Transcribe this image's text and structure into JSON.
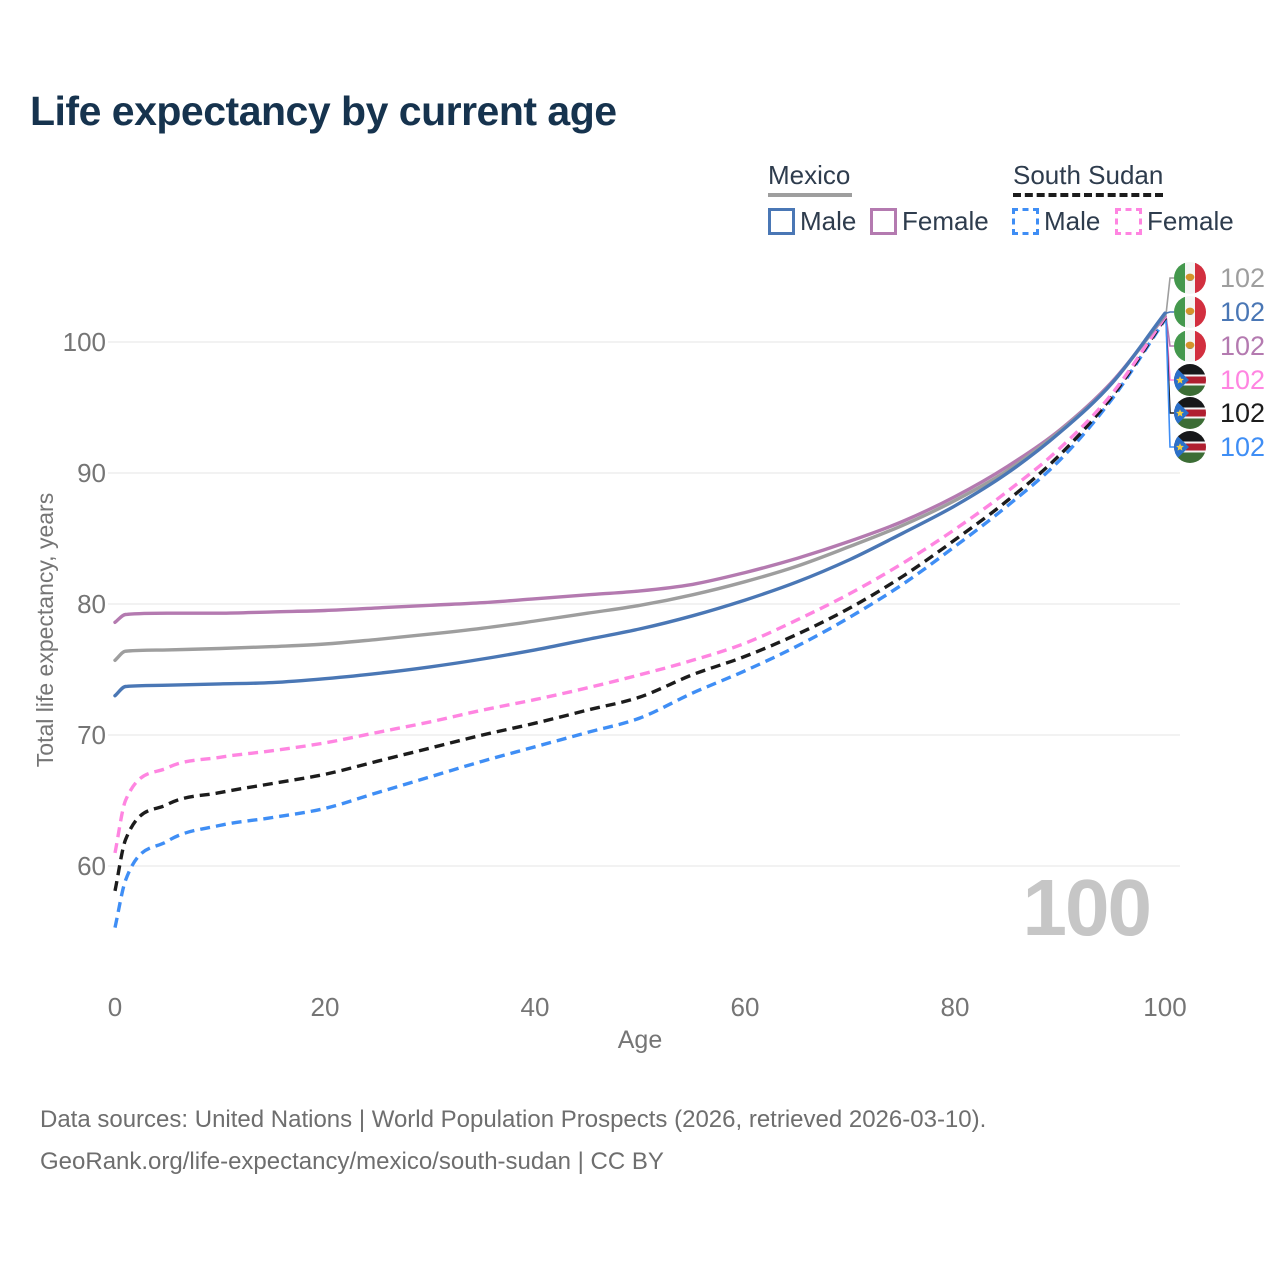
{
  "title": "Life expectancy by current age",
  "legend": {
    "groups": [
      {
        "country": "Mexico",
        "line_style": "solid",
        "underline_color": "#9e9e9e",
        "items": [
          {
            "label": "Male",
            "color": "#4a77b5",
            "dashed": false
          },
          {
            "label": "Female",
            "color": "#b47ab0",
            "dashed": false
          }
        ]
      },
      {
        "country": "South Sudan",
        "line_style": "dashed",
        "underline_color": "#1c1c1c",
        "items": [
          {
            "label": "Male",
            "color": "#3f8ef5",
            "dashed": true
          },
          {
            "label": "Female",
            "color": "#ff85e1",
            "dashed": true
          }
        ]
      }
    ]
  },
  "age_counter": "100",
  "end_labels": [
    {
      "flag": "mexico",
      "value": "102",
      "color": "#9e9e9e"
    },
    {
      "flag": "mexico",
      "value": "102",
      "color": "#4a77b5"
    },
    {
      "flag": "mexico",
      "value": "102",
      "color": "#b47ab0"
    },
    {
      "flag": "south-sudan",
      "value": "102",
      "color": "#ff85e1"
    },
    {
      "flag": "south-sudan",
      "value": "102",
      "color": "#1c1c1c"
    },
    {
      "flag": "south-sudan",
      "value": "102",
      "color": "#3f8ef5"
    }
  ],
  "footer": {
    "line1": "Data sources: United Nations | World Population Prospects (2026, retrieved 2026-03-10).",
    "line2": "GeoRank.org/life-expectancy/mexico/south-sudan | CC BY"
  },
  "chart_data": {
    "type": "line",
    "title": "Life expectancy by current age",
    "xlabel": "Age",
    "ylabel": "Total life expectancy, years",
    "xlim": [
      0,
      100
    ],
    "ylim": [
      54,
      103
    ],
    "xticks": [
      0,
      20,
      40,
      60,
      80,
      100
    ],
    "yticks": [
      60,
      70,
      80,
      90,
      100
    ],
    "grid": "horizontal",
    "legend_position": "top-right",
    "x": [
      0,
      1,
      5,
      10,
      15,
      20,
      25,
      30,
      35,
      40,
      45,
      50,
      55,
      60,
      65,
      70,
      75,
      80,
      85,
      90,
      95,
      100
    ],
    "series": [
      {
        "name": "Mexico Male",
        "country": "Mexico",
        "sex": "Male",
        "color": "#4a77b5",
        "dash": "solid",
        "values": [
          73.0,
          73.7,
          73.8,
          73.9,
          74.0,
          74.3,
          74.7,
          75.2,
          75.8,
          76.5,
          77.3,
          78.1,
          79.1,
          80.3,
          81.7,
          83.4,
          85.4,
          87.5,
          90.0,
          93.1,
          96.9,
          102.2
        ]
      },
      {
        "name": "Mexico Female",
        "country": "Mexico",
        "sex": "Female",
        "color": "#b47ab0",
        "dash": "solid",
        "values": [
          78.6,
          79.2,
          79.3,
          79.3,
          79.4,
          79.5,
          79.7,
          79.9,
          80.1,
          80.4,
          80.7,
          81.0,
          81.5,
          82.4,
          83.5,
          84.8,
          86.3,
          88.2,
          90.5,
          93.3,
          97.0,
          102.0
        ]
      },
      {
        "name": "Mexico Both sexes",
        "country": "Mexico",
        "sex": "All",
        "color": "#9e9e9e",
        "dash": "solid",
        "values": [
          75.7,
          76.4,
          76.5,
          76.6,
          76.75,
          76.95,
          77.3,
          77.7,
          78.15,
          78.7,
          79.3,
          79.9,
          80.7,
          81.7,
          82.9,
          84.4,
          86.0,
          87.9,
          90.2,
          93.2,
          96.9,
          102.1
        ]
      },
      {
        "name": "South Sudan Male",
        "country": "South Sudan",
        "sex": "Male",
        "color": "#3f8ef5",
        "dash": "dashed",
        "values": [
          55.3,
          58.9,
          61.9,
          63.1,
          63.7,
          64.4,
          65.6,
          66.8,
          68.0,
          69.1,
          70.2,
          71.3,
          73.2,
          74.9,
          76.8,
          79.0,
          81.5,
          84.4,
          87.5,
          91.0,
          95.7,
          101.7
        ]
      },
      {
        "name": "South Sudan Female",
        "country": "South Sudan",
        "sex": "Female",
        "color": "#ff85e1",
        "dash": "dashed",
        "values": [
          61.0,
          65.0,
          67.5,
          68.3,
          68.8,
          69.4,
          70.2,
          71.0,
          71.9,
          72.7,
          73.6,
          74.6,
          75.7,
          77.0,
          78.8,
          80.8,
          83.1,
          85.7,
          88.6,
          91.9,
          96.1,
          101.9
        ]
      },
      {
        "name": "South Sudan Both sexes",
        "country": "South Sudan",
        "sex": "All",
        "color": "#1c1c1c",
        "dash": "dashed",
        "values": [
          58.1,
          62.0,
          64.7,
          65.6,
          66.3,
          67.0,
          68.0,
          69.0,
          70.0,
          70.9,
          71.9,
          72.9,
          74.6,
          76.0,
          77.7,
          79.7,
          82.1,
          84.9,
          87.9,
          91.4,
          95.9,
          101.8
        ]
      }
    ]
  }
}
